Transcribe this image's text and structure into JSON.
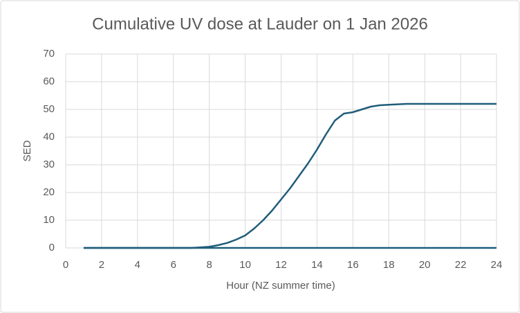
{
  "chart_data": {
    "type": "line",
    "title": "Cumulative UV dose at Lauder on 1 Jan 2026",
    "x_label": "Hour (NZ summer time)",
    "y_label": "SED",
    "xlim": [
      0,
      24
    ],
    "xticks": [
      0,
      2,
      4,
      6,
      8,
      10,
      12,
      14,
      16,
      18,
      20,
      22,
      24
    ],
    "ylim": [
      0,
      70
    ],
    "yticks": [
      0,
      10,
      20,
      30,
      40,
      50,
      60,
      70
    ],
    "grid": true,
    "series": [
      {
        "color": "#1f5c7a",
        "x": [
          1,
          2,
          3,
          4,
          5,
          6,
          7,
          7.5,
          8,
          8.5,
          9,
          9.5,
          10,
          10.5,
          11,
          11.5,
          12,
          12.5,
          13,
          13.5,
          14,
          14.5,
          15,
          15.5,
          16,
          16.5,
          17,
          17.5,
          18,
          19,
          20,
          21,
          22,
          23,
          24
        ],
        "values": [
          0,
          0,
          0,
          0,
          0,
          0,
          0,
          0.2,
          0.4,
          1,
          1.8,
          3,
          4.5,
          7,
          10,
          13.5,
          17.5,
          21.5,
          26,
          30.5,
          35.5,
          41,
          46,
          48.5,
          49,
          50,
          51,
          51.5,
          51.7,
          52,
          52,
          52,
          52,
          52,
          52
        ]
      },
      {
        "color": "#1f5c7a",
        "x": [
          1,
          24
        ],
        "values": [
          0,
          0
        ]
      }
    ]
  }
}
